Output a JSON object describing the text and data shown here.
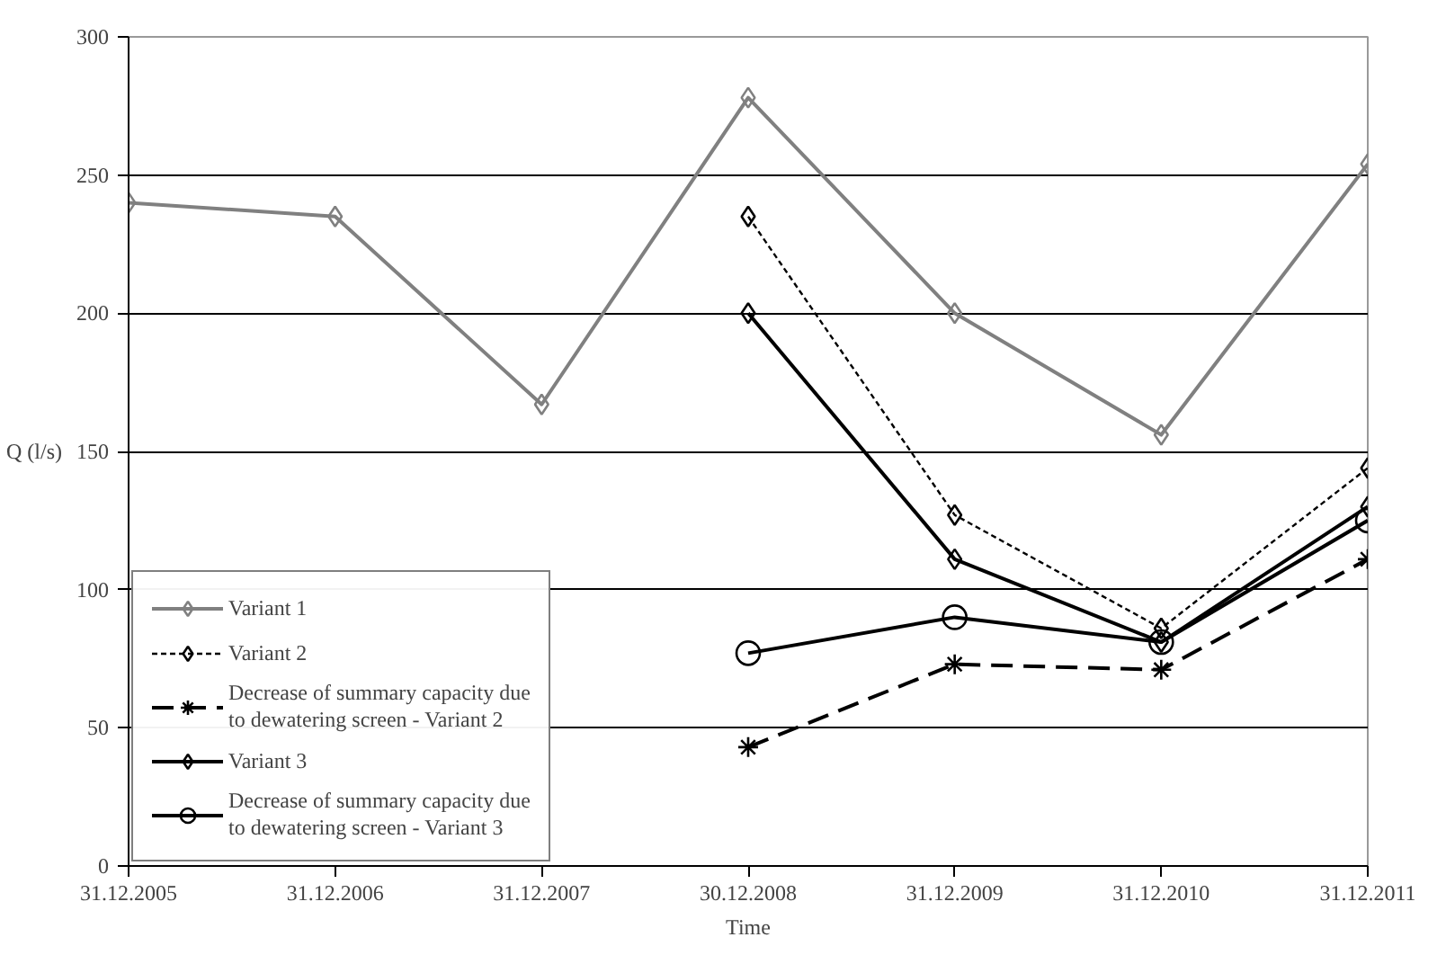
{
  "chart_data": {
    "type": "line",
    "xlabel": "Time",
    "ylabel": "Q (l/s)",
    "categories": [
      "31.12.2005",
      "31.12.2006",
      "31.12.2007",
      "30.12.2008",
      "31.12.2009",
      "31.12.2010",
      "31.12.2011"
    ],
    "ylim": [
      0,
      300
    ],
    "yticks": [
      0,
      50,
      100,
      150,
      200,
      250,
      300
    ],
    "grid": "y",
    "legend": "bottom left",
    "series": [
      {
        "name": "Variant 1",
        "color": "#808080",
        "marker": "diamond",
        "line_style": "solid",
        "values": [
          240,
          235,
          167,
          278,
          200,
          156,
          254
        ]
      },
      {
        "name": "Variant 2",
        "color": "#000000",
        "marker": "diamond",
        "line_style": "dotted",
        "values": [
          null,
          null,
          null,
          235,
          127,
          86,
          144
        ]
      },
      {
        "name": "Decrease of summary capacity due to dewatering screen - Variant 2",
        "color": "#000000",
        "marker": "cross",
        "line_style": "dashed",
        "values": [
          null,
          null,
          null,
          43,
          73,
          71,
          111
        ]
      },
      {
        "name": "Variant 3",
        "color": "#000000",
        "marker": "diamond",
        "line_style": "solid",
        "values": [
          null,
          null,
          null,
          200,
          111,
          81,
          130
        ]
      },
      {
        "name": "Decrease of summary capacity due to dewatering screen - Variant 3",
        "color": "#000000",
        "marker": "circle",
        "line_style": "solid",
        "values": [
          null,
          null,
          null,
          77,
          90,
          81,
          125
        ]
      }
    ]
  }
}
